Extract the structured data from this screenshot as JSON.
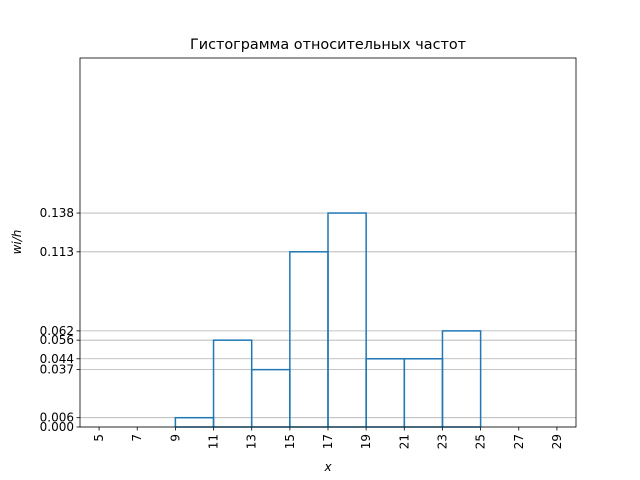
{
  "chart_data": {
    "type": "histogram",
    "title": "Гистограмма относительных частот",
    "xlabel": "x",
    "ylabel": "wi/h",
    "bins": [
      5,
      7,
      9,
      11,
      13,
      15,
      17,
      19,
      21,
      23,
      25,
      27,
      29
    ],
    "values": [
      0,
      0,
      0.006,
      0.056,
      0.037,
      0.113,
      0.138,
      0.044,
      0.044,
      0.062,
      0,
      0
    ],
    "color": "#1f77b4",
    "xlim": [
      4,
      30
    ],
    "xticks": [
      5,
      7,
      9,
      11,
      13,
      15,
      17,
      19,
      21,
      23,
      25,
      27,
      29
    ],
    "ylim": [
      0,
      0.238
    ],
    "yticks": [
      {
        "value": 0,
        "label": "0.000"
      },
      0.006,
      0.037,
      0.044,
      0.056,
      0.062,
      0.113,
      0.138
    ],
    "grid": true
  }
}
